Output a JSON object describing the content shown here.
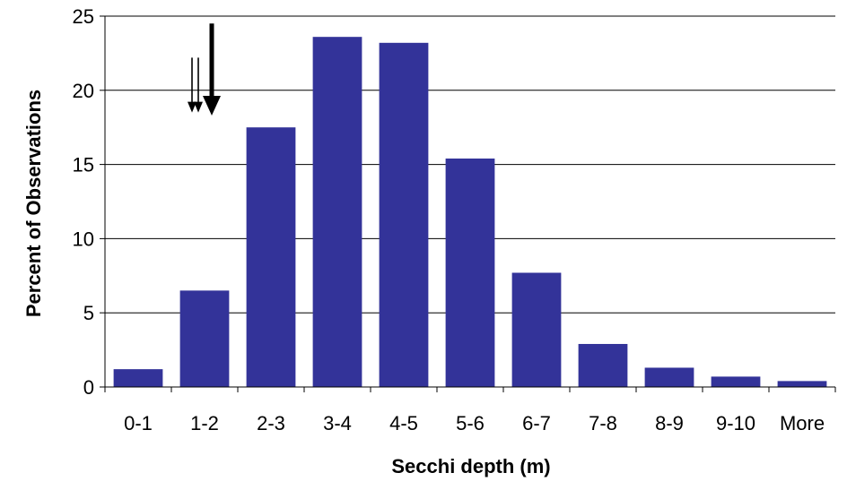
{
  "chart_data": {
    "type": "bar",
    "title": "",
    "xlabel": "Secchi depth (m)",
    "ylabel": "Percent of Observations",
    "categories": [
      "0-1",
      "1-2",
      "2-3",
      "3-4",
      "4-5",
      "5-6",
      "6-7",
      "7-8",
      "8-9",
      "9-10",
      "More"
    ],
    "values": [
      1.2,
      6.5,
      17.5,
      23.6,
      23.2,
      15.4,
      7.7,
      2.9,
      1.3,
      0.7,
      0.4
    ],
    "ylim": [
      0,
      25
    ],
    "yticks": [
      "0",
      "5",
      "10",
      "15",
      "20",
      "25"
    ],
    "grid": true,
    "legend": "none",
    "bar_color": "#333399",
    "annotations": [
      {
        "type": "arrow",
        "weight": "thin",
        "x_category": "1-2",
        "y_start": 22.2,
        "y_end": 18.5
      },
      {
        "type": "arrow",
        "weight": "thin",
        "x_category": "1-2",
        "y_start": 22.2,
        "y_end": 18.5
      },
      {
        "type": "arrow",
        "weight": "thick",
        "x_category": "1-2",
        "y_start": 24.5,
        "y_end": 18.3
      }
    ]
  }
}
